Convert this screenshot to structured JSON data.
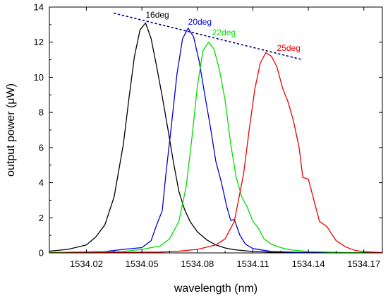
{
  "chart_data": {
    "type": "line",
    "title": "",
    "xlabel": "wavelength (nm)",
    "ylabel": "output power (μW)",
    "xlim": [
      1534.0,
      1534.18
    ],
    "ylim": [
      0,
      14
    ],
    "x_ticks": [
      1534.02,
      1534.05,
      1534.08,
      1534.11,
      1534.14,
      1534.17
    ],
    "x_tick_labels": [
      "1534.02",
      "1534.05",
      "1534.08",
      "1534.11",
      "1534.14",
      "1534.17"
    ],
    "y_ticks": [
      0,
      2,
      4,
      6,
      8,
      10,
      12,
      14
    ],
    "y_tick_labels": [
      "0",
      "2",
      "4",
      "6",
      "8",
      "10",
      "12",
      "14"
    ],
    "grid": false,
    "legend": "none",
    "series": [
      {
        "name": "16deg",
        "color": "#000000",
        "x": [
          1534.0,
          1534.01,
          1534.02,
          1534.025,
          1534.03,
          1534.035,
          1534.04,
          1534.043,
          1534.046,
          1534.049,
          1534.052,
          1534.055,
          1534.058,
          1534.061,
          1534.064,
          1534.067,
          1534.07,
          1534.073,
          1534.076,
          1534.08,
          1534.085,
          1534.09,
          1534.095,
          1534.1,
          1534.11,
          1534.12,
          1534.14,
          1534.18
        ],
        "y": [
          0.1,
          0.2,
          0.45,
          0.9,
          1.6,
          3.2,
          6.2,
          8.8,
          11.2,
          12.7,
          13.1,
          12.2,
          10.6,
          8.9,
          7.1,
          5.2,
          3.5,
          2.5,
          1.8,
          1.2,
          0.75,
          0.45,
          0.28,
          0.18,
          0.08,
          0.04,
          0.02,
          0.01
        ]
      },
      {
        "name": "20deg",
        "color": "#0000dd",
        "x": [
          1534.0,
          1534.03,
          1534.04,
          1534.05,
          1534.055,
          1534.058,
          1534.061,
          1534.063,
          1534.066,
          1534.069,
          1534.072,
          1534.075,
          1534.078,
          1534.081,
          1534.084,
          1534.087,
          1534.09,
          1534.093,
          1534.096,
          1534.098,
          1534.1,
          1534.103,
          1534.106,
          1534.11,
          1534.12,
          1534.14,
          1534.18
        ],
        "y": [
          0.02,
          0.08,
          0.2,
          0.3,
          0.7,
          1.6,
          2.4,
          4.5,
          7.3,
          10.2,
          12.2,
          12.8,
          12.3,
          10.9,
          9.0,
          7.2,
          5.2,
          4.0,
          2.6,
          1.85,
          1.9,
          1.0,
          0.5,
          0.25,
          0.08,
          0.02,
          0.01
        ]
      },
      {
        "name": "22deg",
        "color": "#00dd00",
        "x": [
          1534.0,
          1534.04,
          1534.05,
          1534.06,
          1534.065,
          1534.07,
          1534.074,
          1534.077,
          1534.08,
          1534.083,
          1534.086,
          1534.089,
          1534.092,
          1534.095,
          1534.098,
          1534.101,
          1534.104,
          1534.107,
          1534.11,
          1534.113,
          1534.116,
          1534.12,
          1534.125,
          1534.13,
          1534.14,
          1534.16,
          1534.18
        ],
        "y": [
          0.02,
          0.08,
          0.2,
          0.4,
          0.8,
          1.8,
          3.8,
          6.5,
          9.5,
          11.5,
          12.0,
          11.6,
          10.4,
          8.7,
          6.2,
          4.3,
          3.2,
          2.6,
          1.8,
          1.4,
          0.8,
          0.5,
          0.3,
          0.18,
          0.08,
          0.02,
          0.01
        ]
      },
      {
        "name": "25deg",
        "color": "#ee0000",
        "x": [
          1534.0,
          1534.06,
          1534.07,
          1534.08,
          1534.09,
          1534.095,
          1534.1,
          1534.105,
          1534.108,
          1534.111,
          1534.114,
          1534.117,
          1534.12,
          1534.123,
          1534.126,
          1534.129,
          1534.132,
          1534.135,
          1534.137,
          1534.14,
          1534.143,
          1534.146,
          1534.15,
          1534.155,
          1534.16,
          1534.165,
          1534.17,
          1534.18
        ],
        "y": [
          0.0,
          0.05,
          0.1,
          0.2,
          0.45,
          0.8,
          1.8,
          4.5,
          7.0,
          9.3,
          10.8,
          11.4,
          11.2,
          10.6,
          9.4,
          8.6,
          7.5,
          6.0,
          4.3,
          4.2,
          3.0,
          1.8,
          1.5,
          0.7,
          0.35,
          0.15,
          0.07,
          0.02
        ]
      }
    ],
    "annotations": [
      {
        "text": "16deg",
        "x": 1534.052,
        "y": 13.4,
        "color": "#000000"
      },
      {
        "text": "20deg",
        "x": 1534.075,
        "y": 13.0,
        "color": "#0000dd"
      },
      {
        "text": "22deg",
        "x": 1534.088,
        "y": 12.4,
        "color": "#00dd00"
      },
      {
        "text": "25deg",
        "x": 1534.123,
        "y": 11.5,
        "color": "#ee0000"
      }
    ],
    "trend_line": {
      "style": "dotted",
      "color": "#000080",
      "x": [
        1534.035,
        1534.137
      ],
      "y": [
        13.65,
        11.0
      ]
    }
  }
}
